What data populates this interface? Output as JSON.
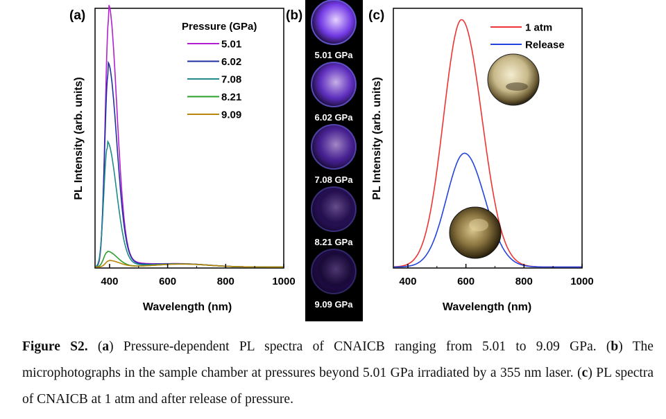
{
  "panels": {
    "a": {
      "label": "(a)",
      "legend_title": "Pressure (GPa)",
      "ylabel": "PL Intensity (arb. units)",
      "xlabel": "Wavelength (nm)",
      "xticks": [
        "400",
        "600",
        "800",
        "1000"
      ]
    },
    "b": {
      "label": "(b)",
      "photos": [
        {
          "label": "5.01 GPa",
          "brightness": 1.0
        },
        {
          "label": "6.02 GPa",
          "brightness": 0.85
        },
        {
          "label": "7.08 GPa",
          "brightness": 0.65
        },
        {
          "label": "8.21 GPa",
          "brightness": 0.3
        },
        {
          "label": "9.09 GPa",
          "brightness": 0.15
        }
      ]
    },
    "c": {
      "label": "(c)",
      "ylabel": "PL Intensity (arb. units)",
      "xlabel": "Wavelength (nm)",
      "xticks": [
        "400",
        "600",
        "800",
        "1000"
      ]
    }
  },
  "chart_data": [
    {
      "type": "line",
      "title": "",
      "xlabel": "Wavelength (nm)",
      "ylabel": "PL Intensity (arb. units)",
      "xlim": [
        350,
        1000
      ],
      "ylim": [
        0,
        1.05
      ],
      "legend_title": "Pressure (GPa)",
      "legend_position": "top-right",
      "series": [
        {
          "name": "5.01",
          "color": "#b21fd0",
          "peak_x": 397,
          "peak_y": 1.0
        },
        {
          "name": "6.02",
          "color": "#1f2fa0",
          "peak_x": 395,
          "peak_y": 0.78
        },
        {
          "name": "7.08",
          "color": "#1f8a8a",
          "peak_x": 392,
          "peak_y": 0.48
        },
        {
          "name": "8.21",
          "color": "#2aa02a",
          "peak_x": 392,
          "peak_y": 0.06
        },
        {
          "name": "9.09",
          "color": "#b8860b",
          "peak_x": 398,
          "peak_y": 0.025
        }
      ]
    },
    {
      "type": "line",
      "title": "",
      "xlabel": "Wavelength (nm)",
      "ylabel": "PL Intensity (arb. units)",
      "xlim": [
        350,
        1000
      ],
      "ylim": [
        0,
        1.05
      ],
      "legend_position": "top-right",
      "series": [
        {
          "name": "1 atm",
          "color": "#ee3333",
          "peak_x": 585,
          "peak_y": 1.0
        },
        {
          "name": "Release",
          "color": "#2244dd",
          "peak_x": 595,
          "peak_y": 0.46
        }
      ]
    }
  ],
  "caption": {
    "fig_label": "Figure S2.",
    "a_label": "a",
    "a_text": " Pressure-dependent PL spectra of CNAICB ranging from 5.01 to 9.09 GPa. (",
    "b_label": "b",
    "b_text": ") The microphotographs in the sample chamber at pressures beyond 5.01 GPa irradiated by a 355 nm laser. (",
    "c_label": "c",
    "c_text": ") PL spectra of CNAICB at 1 atm and after release of pressure."
  }
}
